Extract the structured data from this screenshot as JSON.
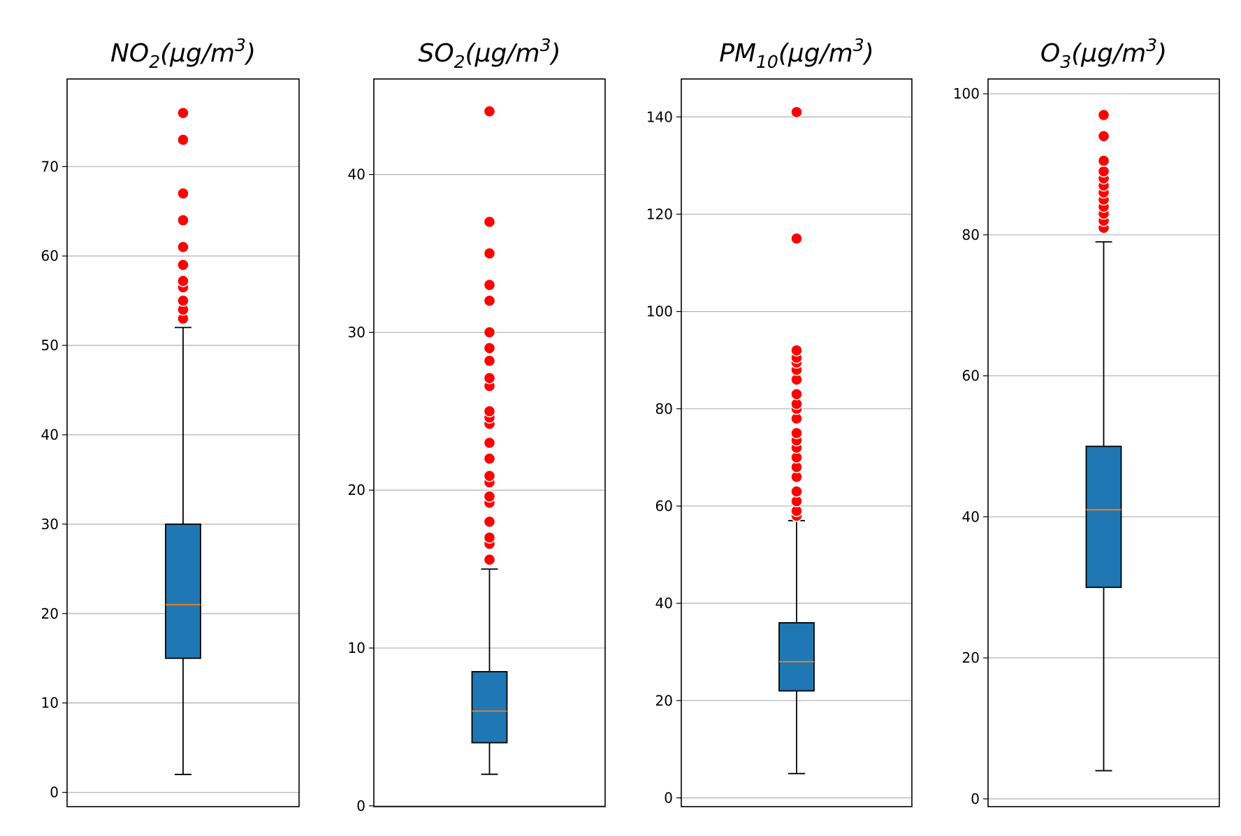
{
  "chart_data": [
    {
      "type": "box",
      "title": "NO",
      "title_sub": "2",
      "title_unit": "(μg/m",
      "title_sup": "3",
      "title_close": ")",
      "ylim": [
        -1.6,
        79.8
      ],
      "yticks": [
        0,
        10,
        20,
        30,
        40,
        50,
        60,
        70
      ],
      "grid": true,
      "box": {
        "whisker_low": 2,
        "q1": 15,
        "median": 21,
        "q3": 30,
        "whisker_high": 52
      },
      "outliers": [
        53,
        54,
        55,
        56.5,
        57.2,
        59,
        61,
        64,
        67,
        73,
        76
      ]
    },
    {
      "type": "box",
      "title": "SO",
      "title_sub": "2",
      "title_unit": "(μg/m",
      "title_sup": "3",
      "title_close": ")",
      "ylim": [
        -0.05,
        46.05
      ],
      "yticks": [
        0,
        10,
        20,
        30,
        40
      ],
      "grid": true,
      "box": {
        "whisker_low": 2,
        "q1": 4,
        "median": 6,
        "q3": 8.5,
        "whisker_high": 15
      },
      "outliers": [
        15.6,
        16.6,
        17,
        18,
        19.2,
        19.6,
        20.5,
        20.9,
        22,
        23,
        24.2,
        24.6,
        25,
        26.6,
        27.1,
        28.2,
        29,
        30,
        32,
        33,
        35,
        37,
        44
      ]
    },
    {
      "type": "box",
      "title": "PM",
      "title_sub": "10",
      "title_unit": "(μg/m",
      "title_sup": "3",
      "title_close": ")",
      "ylim": [
        -1.8,
        147.8
      ],
      "yticks": [
        0,
        20,
        40,
        60,
        80,
        100,
        120,
        140
      ],
      "grid": true,
      "box": {
        "whisker_low": 5,
        "q1": 22,
        "median": 28,
        "q3": 36,
        "whisker_high": 57
      },
      "outliers": [
        58,
        59,
        61,
        63,
        66,
        68,
        70,
        72,
        73.5,
        75,
        78,
        80,
        81,
        83,
        86,
        88,
        89.5,
        90.5,
        92,
        115,
        141
      ]
    },
    {
      "type": "box",
      "title": "O",
      "title_sub": "3",
      "title_unit": "(μg/m",
      "title_sup": "3",
      "title_close": ")",
      "ylim": [
        -1.1,
        102.1
      ],
      "yticks": [
        0,
        20,
        40,
        60,
        80,
        100
      ],
      "grid": true,
      "box": {
        "whisker_low": 4,
        "q1": 30,
        "median": 41,
        "q3": 50,
        "whisker_high": 79
      },
      "outliers": [
        81,
        82,
        83,
        84,
        85,
        86,
        87,
        88,
        89,
        90.5,
        94,
        97
      ]
    }
  ]
}
